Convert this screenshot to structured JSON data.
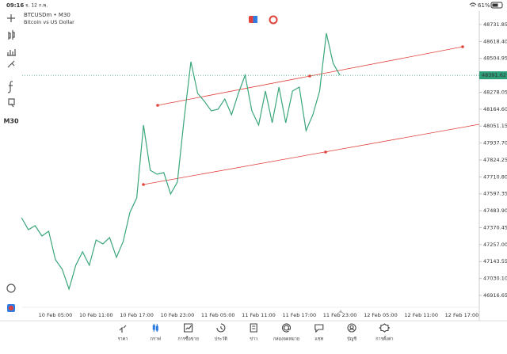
{
  "status_bar": {
    "time": "09:16",
    "date": "จ. 12 ก.พ.",
    "battery": "61%"
  },
  "header": {
    "symbol": "BTCUSDm • M30",
    "description": "Bitcoin vs US Dollar"
  },
  "toolbar": {
    "timeframe": "M30"
  },
  "chart_data": {
    "type": "line",
    "categories": [
      null,
      null,
      null,
      null,
      null,
      "10 Feb 05:00",
      null,
      null,
      null,
      null,
      null,
      "10 Feb 11:00",
      null,
      null,
      null,
      null,
      null,
      "10 Feb 17:00",
      null,
      null,
      null,
      null,
      null,
      "10 Feb 23:00",
      null,
      null,
      null,
      null,
      null,
      "11 Feb 05:00",
      null,
      null,
      null,
      null,
      null,
      "11 Feb 11:00",
      null,
      null,
      null,
      null,
      null,
      "11 Feb 17:00",
      null,
      null,
      null,
      null,
      null,
      "11 Feb 23:00",
      null,
      null,
      null,
      null,
      null,
      "12 Feb 05:00",
      null,
      null,
      null,
      null,
      null,
      "12 Feb 11:00",
      null,
      null,
      null,
      null,
      null,
      "12 Feb 17:00",
      null,
      null
    ],
    "series": [
      {
        "color": "#3aa67a",
        "values": [
          47436.8,
          47357.2,
          47383.7,
          47314.7,
          47346.6,
          47155.5,
          47091.8,
          46959.1,
          47118.3,
          47208.6,
          47118.3,
          47288.2,
          47261.6,
          47304.1,
          47171.4,
          47277.6,
          47474.0,
          47569.5,
          48057.8,
          47755.3,
          47728.7,
          47739.3,
          47596.0,
          47675.7,
          48100.3,
          48482.4,
          48270.1,
          48217.0,
          48153.3,
          48163.9,
          48232.9,
          48126.8,
          48270.1,
          48392.2,
          48153.3,
          48057.8,
          48286.0,
          48073.7,
          48312.5,
          48073.7,
          48286.0,
          48312.5,
          48020.6,
          48126.8,
          48286.0,
          48673.5,
          48471.8,
          48391.6,
          null,
          null,
          null,
          null,
          null,
          null,
          null,
          null,
          null,
          null,
          null,
          null,
          null,
          null,
          null,
          null,
          null,
          null,
          null,
          null
        ]
      }
    ],
    "ylim": [
      46837,
      48822
    ],
    "yticks": [
      48731.85,
      {
        "value": 48618.4,
        "label": "48618.40"
      },
      48504.95,
      48278.05,
      {
        "value": 48164.6,
        "label": "48164.60"
      },
      48051.15,
      {
        "value": 47937.7,
        "label": "47937.70"
      },
      47824.25,
      {
        "value": 47710.8,
        "label": "47710.80"
      },
      47597.35,
      {
        "value": 47483.9,
        "label": "47483.90"
      },
      47370.45,
      {
        "value": 47257.0,
        "label": "47257.00"
      },
      47143.55,
      {
        "value": 47030.1,
        "label": "47030.10"
      },
      46916.65
    ],
    "current_price": 48391.62,
    "current_price_color": "#2e9e7a"
  },
  "bottom_nav": {
    "items": [
      {
        "label": "ราคา",
        "active": false
      },
      {
        "label": "กราฟ",
        "active": true
      },
      {
        "label": "การซื้อขาย",
        "active": false
      },
      {
        "label": "ประวัติ",
        "active": false
      },
      {
        "label": "ข่าว",
        "active": false
      },
      {
        "label": "กล่องจดหมาย",
        "active": false
      },
      {
        "label": "แชท",
        "active": false
      },
      {
        "label": "บัญชี",
        "active": false
      },
      {
        "label": "การตั้งค่า",
        "active": false
      }
    ]
  }
}
